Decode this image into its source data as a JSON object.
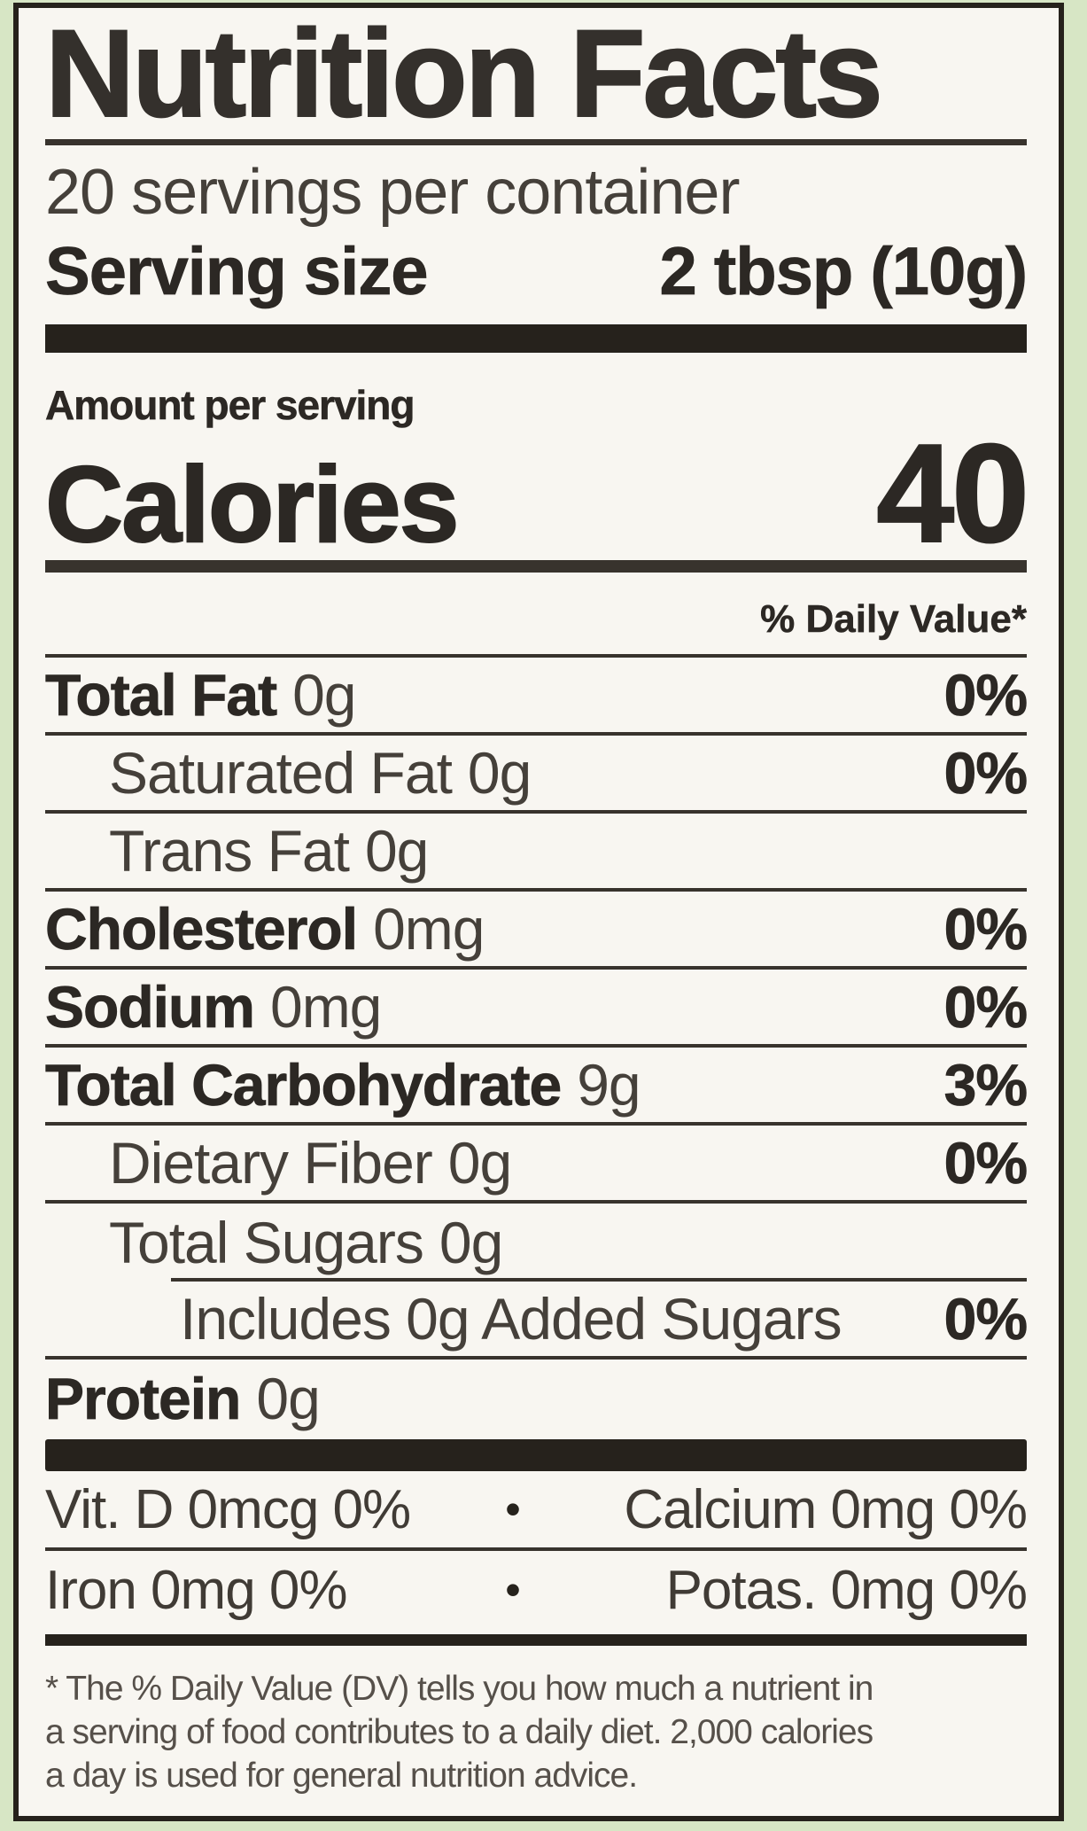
{
  "colors": {
    "background_green": "#d7e6c5",
    "label_paper": "#f8f6f1",
    "ink": "#2c2824",
    "rule": "#38332d"
  },
  "label": {
    "title": "Nutrition Facts",
    "servings_per_container": "20 servings per container",
    "serving_size": {
      "label": "Serving size",
      "value": "2 tbsp (10g)"
    },
    "amount_per_serving": "Amount per serving",
    "calories": {
      "label": "Calories",
      "value": "40"
    },
    "daily_value_header": "% Daily Value*",
    "bullet": "•",
    "rows": [
      {
        "name": "Total Fat",
        "amount": "0g",
        "dv": "0%"
      },
      {
        "name": "Saturated Fat",
        "amount": "0g",
        "dv": "0%"
      },
      {
        "name": "Trans Fat",
        "amount": "0g",
        "dv": ""
      },
      {
        "name": "Cholesterol",
        "amount": "0mg",
        "dv": "0%"
      },
      {
        "name": "Sodium",
        "amount": "0mg",
        "dv": "0%"
      },
      {
        "name": "Total Carbohydrate",
        "amount": "9g",
        "dv": "3%"
      },
      {
        "name": "Dietary Fiber",
        "amount": "0g",
        "dv": "0%"
      },
      {
        "name": "Total Sugars",
        "amount": "0g",
        "dv": ""
      },
      {
        "name": "Includes 0g Added Sugars",
        "amount": "",
        "dv": "0%"
      },
      {
        "name": "Protein",
        "amount": "0g",
        "dv": ""
      }
    ],
    "micronutrients": [
      {
        "left": "Vit. D 0mcg 0%",
        "right": "Calcium 0mg 0%"
      },
      {
        "left": "Iron 0mg 0%",
        "right": "Potas. 0mg 0%"
      }
    ],
    "footnote_lines": [
      "* The % Daily Value (DV) tells you how much a nutrient in",
      "a serving of food contributes to a daily diet. 2,000 calories",
      "a day is used for general nutrition advice."
    ]
  }
}
